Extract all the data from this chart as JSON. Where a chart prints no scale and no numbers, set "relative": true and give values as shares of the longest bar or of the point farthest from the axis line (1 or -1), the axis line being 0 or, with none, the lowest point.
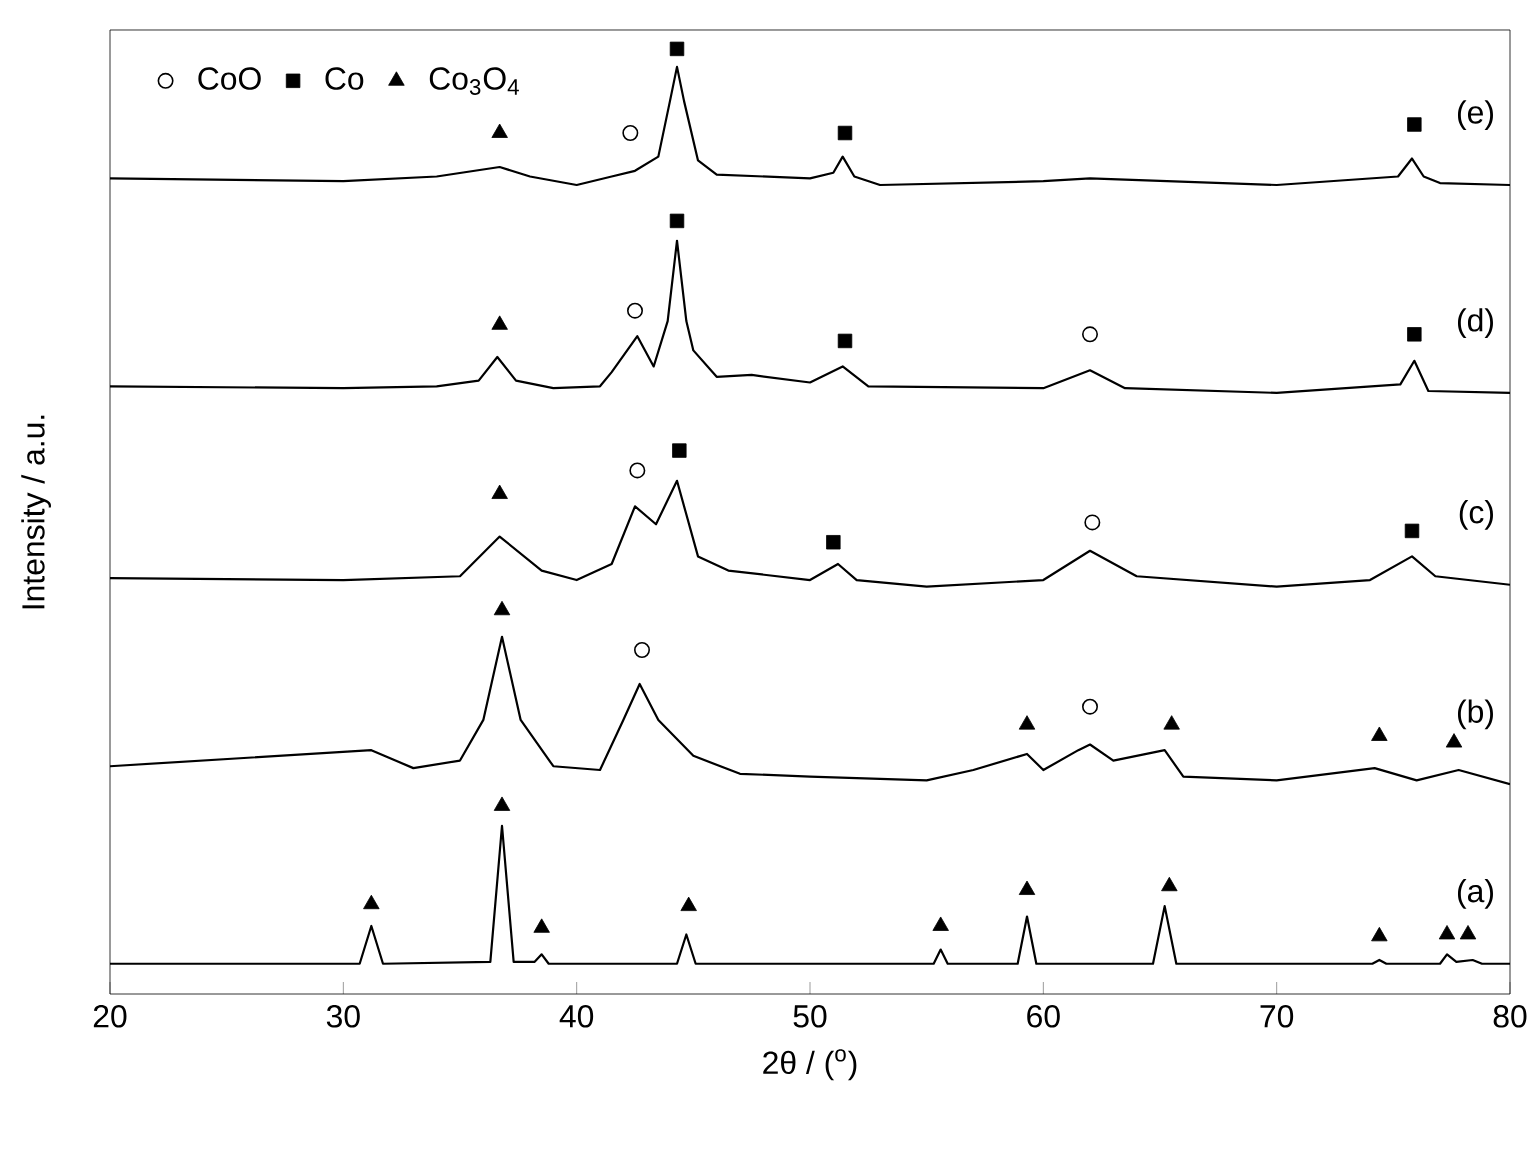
{
  "chart_data": {
    "type": "line",
    "relative": true,
    "xlabel": "2θ / ($^{o}$)",
    "ylabel": "Intensity / a.u.",
    "xlim": [
      20,
      80
    ],
    "xticks": [
      20,
      30,
      40,
      50,
      60,
      70,
      80
    ],
    "legend": "top left",
    "line_style": "solid",
    "annotations": [
      "(e)",
      "(d)",
      "(c)",
      "(b)",
      "(a)"
    ],
    "series": [
      {
        "type": "line",
        "color": "#000000",
        "x": [
          20,
          30,
          34,
          36.7,
          38,
          40,
          41.5,
          42.5,
          43.5,
          44.0,
          44.3,
          44.6,
          45.2,
          46,
          50,
          51.0,
          51.4,
          51.9,
          53,
          60,
          62,
          70,
          75.2,
          75.8,
          76.3,
          77,
          80
        ],
        "values": [
          0.863,
          0.86,
          0.865,
          0.875,
          0.865,
          0.856,
          0.865,
          0.871,
          0.886,
          0.945,
          0.981,
          0.945,
          0.882,
          0.867,
          0.863,
          0.869,
          0.886,
          0.865,
          0.856,
          0.86,
          0.863,
          0.856,
          0.865,
          0.884,
          0.865,
          0.858,
          0.856
        ]
      },
      {
        "type": "line",
        "color": "#000000",
        "x": [
          20,
          30,
          34,
          35.8,
          36.6,
          37.4,
          39,
          41,
          41.5,
          42.6,
          43.3,
          43.9,
          44.3,
          44.7,
          45,
          46,
          47.5,
          50,
          51.4,
          52.5,
          60,
          62,
          63.5,
          70,
          75.3,
          75.9,
          76.5,
          80
        ],
        "values": [
          0.643,
          0.641,
          0.643,
          0.649,
          0.674,
          0.649,
          0.641,
          0.643,
          0.658,
          0.696,
          0.664,
          0.712,
          0.797,
          0.712,
          0.681,
          0.653,
          0.655,
          0.647,
          0.664,
          0.643,
          0.641,
          0.66,
          0.641,
          0.636,
          0.645,
          0.67,
          0.638,
          0.636
        ]
      },
      {
        "type": "line",
        "color": "#000000",
        "x": [
          20,
          30,
          35,
          36.7,
          38.5,
          40,
          41.5,
          42.5,
          43.4,
          44.3,
          45.2,
          46.5,
          50,
          51.2,
          52,
          55,
          60,
          62,
          64,
          70,
          74,
          75.8,
          76.8,
          80
        ],
        "values": [
          0.44,
          0.438,
          0.442,
          0.484,
          0.448,
          0.438,
          0.455,
          0.516,
          0.497,
          0.543,
          0.463,
          0.448,
          0.438,
          0.455,
          0.438,
          0.431,
          0.438,
          0.469,
          0.442,
          0.431,
          0.438,
          0.463,
          0.442,
          0.433
        ]
      },
      {
        "type": "line",
        "color": "#000000",
        "x": [
          20,
          31.2,
          33,
          35,
          36.0,
          36.8,
          37.6,
          39,
          41,
          42,
          42.7,
          43.5,
          45,
          47,
          50,
          55,
          57,
          59.3,
          60,
          61.5,
          62,
          63,
          65.2,
          66,
          70,
          74.2,
          76,
          77.8,
          80
        ],
        "values": [
          0.241,
          0.258,
          0.239,
          0.247,
          0.29,
          0.378,
          0.29,
          0.241,
          0.237,
          0.29,
          0.328,
          0.29,
          0.252,
          0.233,
          0.23,
          0.226,
          0.237,
          0.254,
          0.237,
          0.258,
          0.264,
          0.247,
          0.258,
          0.23,
          0.226,
          0.239,
          0.226,
          0.237,
          0.222
        ]
      },
      {
        "type": "line",
        "color": "#000000",
        "x": [
          20,
          30.7,
          31.2,
          31.7,
          36.3,
          36.8,
          37.3,
          38.2,
          38.5,
          38.8,
          44.3,
          44.7,
          45.1,
          55.3,
          55.6,
          55.9,
          58.9,
          59.3,
          59.7,
          64.7,
          65.2,
          65.7,
          74.1,
          74.4,
          74.7,
          77.0,
          77.3,
          77.7,
          78.4,
          78.8,
          80
        ],
        "values": [
          0.032,
          0.032,
          0.072,
          0.032,
          0.034,
          0.178,
          0.034,
          0.034,
          0.042,
          0.032,
          0.032,
          0.063,
          0.032,
          0.032,
          0.047,
          0.032,
          0.032,
          0.082,
          0.032,
          0.032,
          0.093,
          0.032,
          0.032,
          0.036,
          0.032,
          0.032,
          0.042,
          0.034,
          0.036,
          0.032,
          0.032
        ]
      },
      {
        "name": "CoO",
        "type": "scatter",
        "marker": "circle",
        "color": "#000000",
        "x": [
          42.3,
          42.5,
          62.0,
          42.6,
          62.1,
          42.8,
          62.0
        ],
        "values": [
          0.911,
          0.723,
          0.698,
          0.554,
          0.499,
          0.364,
          0.304
        ]
      },
      {
        "name": "Co",
        "type": "scatter",
        "marker": "square",
        "color": "#000000",
        "x": [
          44.3,
          51.5,
          75.9,
          44.3,
          51.5,
          75.9,
          44.4,
          51.0,
          75.8
        ],
        "values": [
          1.0,
          0.911,
          0.92,
          0.818,
          0.691,
          0.698,
          0.575,
          0.478,
          0.49
        ]
      },
      {
        "name": "Co$_{3}$O$_{4}$",
        "type": "scatter",
        "marker": "triangle",
        "color": "#000000",
        "x": [
          36.7,
          36.7,
          36.7,
          36.8,
          59.3,
          65.5,
          74.4,
          77.6,
          31.2,
          36.8,
          38.5,
          44.8,
          55.6,
          59.3,
          65.4,
          74.4,
          77.3,
          78.2
        ],
        "values": [
          0.911,
          0.708,
          0.529,
          0.406,
          0.285,
          0.285,
          0.273,
          0.266,
          0.095,
          0.199,
          0.07,
          0.093,
          0.072,
          0.11,
          0.114,
          0.061,
          0.063,
          0.063
        ]
      }
    ]
  }
}
